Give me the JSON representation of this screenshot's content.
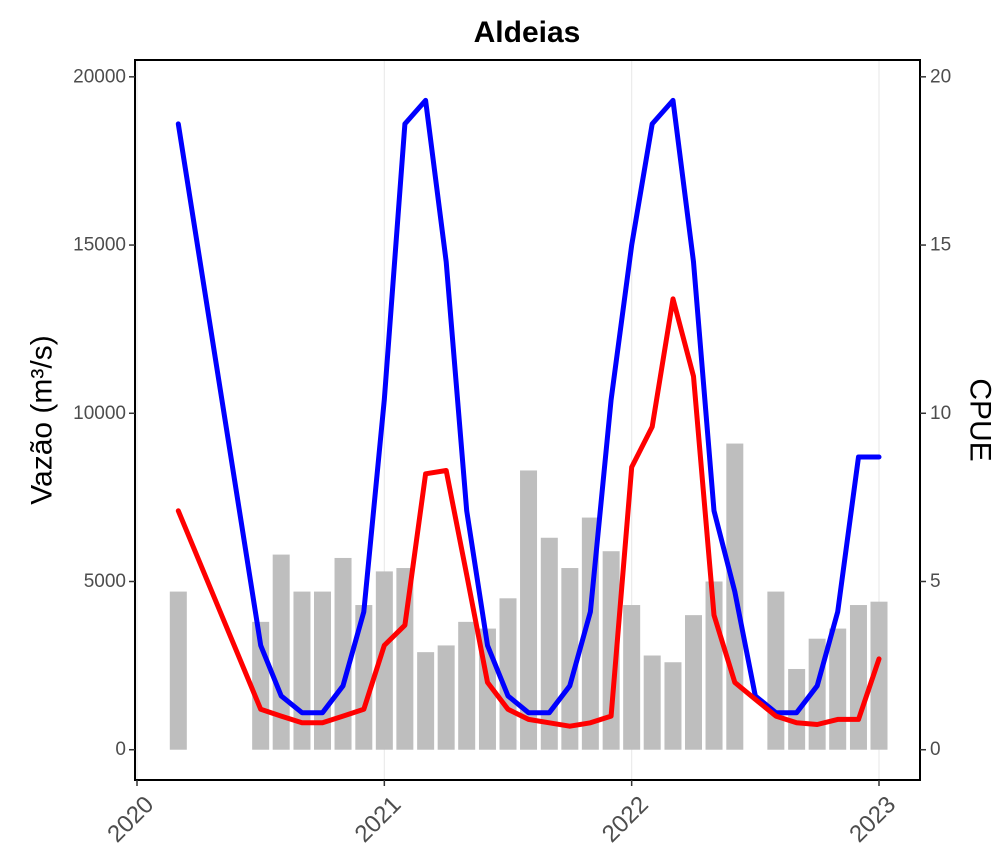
{
  "chart_data": {
    "type": "bar",
    "title": "Aldeias",
    "ylabel_left": "Vazão (m³/s)",
    "ylabel_right": "CPUE",
    "xlim": [
      2020,
      2023.1
    ],
    "ylim_left": [
      -900,
      20500
    ],
    "ylim_right": [
      -0.9,
      20.5
    ],
    "x_ticks": [
      2020,
      2021,
      2022,
      2023
    ],
    "y_left_ticks": [
      0,
      5000,
      10000,
      15000,
      20000
    ],
    "y_right_ticks": [
      0,
      5,
      10,
      15,
      20
    ],
    "grid": "vertical major lines only",
    "colors": {
      "bars": "#bebebe",
      "blue_series": "#0000ff",
      "red_series": "#ff0000",
      "frame": "#000000"
    },
    "bars": {
      "axis": "right",
      "x": [
        2020.167,
        2020.5,
        2020.583,
        2020.667,
        2020.75,
        2020.833,
        2020.917,
        2021.0,
        2021.083,
        2021.167,
        2021.25,
        2021.333,
        2021.417,
        2021.5,
        2021.583,
        2021.667,
        2021.75,
        2021.833,
        2021.917,
        2022.0,
        2022.083,
        2022.167,
        2022.25,
        2022.333,
        2022.417,
        2022.583,
        2022.667,
        2022.75,
        2022.833,
        2022.917,
        2023.0
      ],
      "values": [
        4.7,
        3.8,
        5.8,
        4.7,
        4.7,
        5.7,
        4.3,
        5.3,
        5.4,
        2.9,
        3.1,
        3.8,
        3.6,
        4.5,
        8.3,
        6.3,
        5.4,
        6.9,
        5.9,
        4.3,
        2.8,
        2.6,
        4.0,
        5.0,
        9.1,
        4.7,
        2.4,
        3.3,
        3.6,
        4.3,
        4.4
      ]
    },
    "series": [
      {
        "axis": "left",
        "color": "blue",
        "x": [
          2020.167,
          2020.5,
          2020.583,
          2020.667,
          2020.75,
          2020.833,
          2020.917,
          2021.0,
          2021.083,
          2021.167,
          2021.25,
          2021.333,
          2021.417,
          2021.5,
          2021.583,
          2021.667,
          2021.75,
          2021.833,
          2021.917,
          2022.0,
          2022.083,
          2022.167,
          2022.25,
          2022.333,
          2022.417,
          2022.5,
          2022.583,
          2022.667,
          2022.75,
          2022.833,
          2022.917,
          2023.0
        ],
        "values": [
          18600,
          3100,
          1600,
          1100,
          1100,
          1900,
          4100,
          10400,
          18600,
          19300,
          14500,
          7100,
          3100,
          1600,
          1100,
          1100,
          1900,
          4100,
          10400,
          15000,
          18600,
          19300,
          14500,
          7100,
          4700,
          1600,
          1100,
          1100,
          1900,
          4100,
          8700,
          8700
        ]
      },
      {
        "axis": "left",
        "color": "red",
        "x": [
          2020.167,
          2020.5,
          2020.583,
          2020.667,
          2020.75,
          2020.833,
          2020.917,
          2021.0,
          2021.083,
          2021.167,
          2021.25,
          2021.333,
          2021.417,
          2021.5,
          2021.583,
          2021.667,
          2021.75,
          2021.833,
          2021.917,
          2022.0,
          2022.083,
          2022.167,
          2022.25,
          2022.333,
          2022.417,
          2022.5,
          2022.583,
          2022.667,
          2022.75,
          2022.833,
          2022.917,
          2023.0
        ],
        "values": [
          7100,
          1200,
          1000,
          800,
          800,
          1000,
          1200,
          3100,
          3700,
          8200,
          8300,
          5200,
          2000,
          1200,
          900,
          800,
          700,
          800,
          1000,
          8400,
          9600,
          13400,
          11100,
          4000,
          2000,
          1500,
          1000,
          800,
          750,
          900,
          900,
          2700
        ]
      }
    ]
  }
}
